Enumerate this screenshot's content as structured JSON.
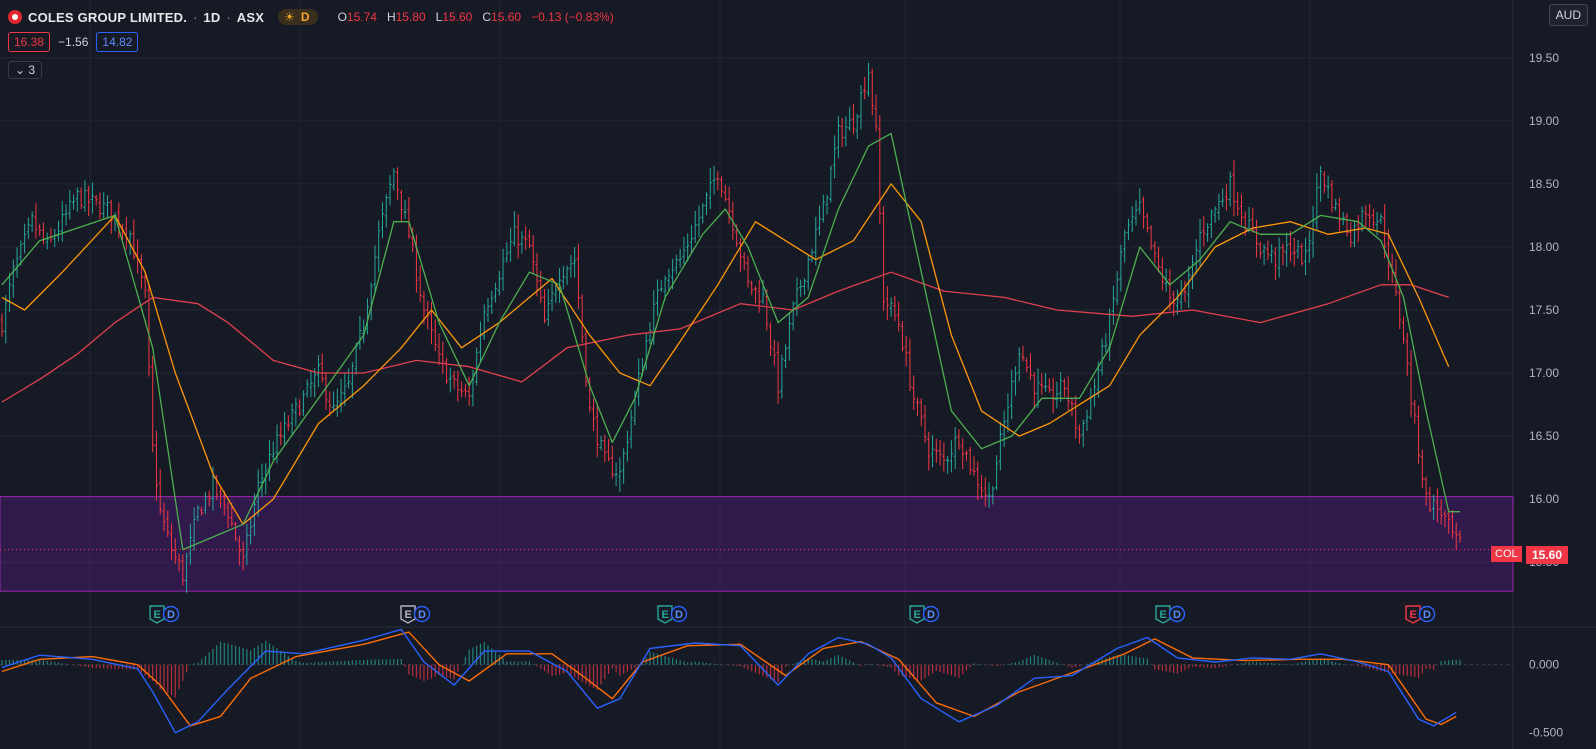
{
  "header": {
    "title": "COLES GROUP LIMITED.",
    "separator": "·",
    "interval": "1D",
    "exchange": "ASX",
    "session_badge": "D",
    "ohlc": {
      "o_label": "O",
      "o_value": "15.74",
      "h_label": "H",
      "h_value": "15.80",
      "l_label": "L",
      "l_value": "15.60",
      "c_label": "C",
      "c_value": "15.60",
      "change": "−0.13 (−0.83%)"
    }
  },
  "quote_bar": {
    "sell": "16.38",
    "spread": "−1.56",
    "buy": "14.82"
  },
  "indicators_toggle": {
    "count": "3",
    "icon": "chevron-down-icon"
  },
  "currency_button": "AUD",
  "price_tag": {
    "symbol": "COL",
    "price": "15.60"
  },
  "colors": {
    "background": "#161a25",
    "up": "#26a69a",
    "down": "#f23645",
    "ma_fast": "#4caf50",
    "ma_mid": "#ff9800",
    "ma_slow": "#e0404f",
    "zone": "#6a1b9a",
    "macd": "#2962ff",
    "signal": "#ff6d00"
  },
  "chart_data": [
    {
      "type": "candlestick",
      "y_axis_ticks": [
        "19.50",
        "19.00",
        "18.50",
        "18.00",
        "17.50",
        "17.00",
        "16.50",
        "16.00",
        "15.50"
      ],
      "ylim": [
        15.2,
        19.8
      ],
      "shaded_zone": [
        15.27,
        16.02
      ],
      "last_price": 15.6,
      "price_keypoints": [
        [
          0,
          17.4
        ],
        [
          3,
          17.8
        ],
        [
          8,
          18.2
        ],
        [
          12,
          18.0
        ],
        [
          20,
          18.4
        ],
        [
          28,
          18.3
        ],
        [
          34,
          18.1
        ],
        [
          38,
          17.6
        ],
        [
          40,
          16.4
        ],
        [
          42,
          15.9
        ],
        [
          45,
          15.6
        ],
        [
          48,
          15.4
        ],
        [
          52,
          15.9
        ],
        [
          56,
          16.1
        ],
        [
          60,
          15.9
        ],
        [
          64,
          15.5
        ],
        [
          68,
          16.1
        ],
        [
          72,
          16.4
        ],
        [
          78,
          16.7
        ],
        [
          84,
          17.0
        ],
        [
          88,
          16.7
        ],
        [
          92,
          16.9
        ],
        [
          96,
          17.4
        ],
        [
          100,
          18.1
        ],
        [
          104,
          18.6
        ],
        [
          108,
          18.1
        ],
        [
          112,
          17.5
        ],
        [
          116,
          17.1
        ],
        [
          120,
          16.9
        ],
        [
          124,
          16.8
        ],
        [
          128,
          17.5
        ],
        [
          132,
          17.8
        ],
        [
          136,
          18.1
        ],
        [
          140,
          18.0
        ],
        [
          144,
          17.4
        ],
        [
          148,
          17.8
        ],
        [
          152,
          17.9
        ],
        [
          156,
          16.7
        ],
        [
          160,
          16.3
        ],
        [
          164,
          16.2
        ],
        [
          168,
          16.8
        ],
        [
          172,
          17.4
        ],
        [
          176,
          17.8
        ],
        [
          180,
          17.9
        ],
        [
          186,
          18.3
        ],
        [
          190,
          18.6
        ],
        [
          194,
          18.2
        ],
        [
          198,
          17.7
        ],
        [
          202,
          17.6
        ],
        [
          206,
          16.9
        ],
        [
          210,
          17.5
        ],
        [
          214,
          17.9
        ],
        [
          218,
          18.3
        ],
        [
          222,
          18.9
        ],
        [
          226,
          19.0
        ],
        [
          230,
          19.4
        ],
        [
          232,
          18.9
        ],
        [
          234,
          17.6
        ],
        [
          238,
          17.4
        ],
        [
          242,
          16.8
        ],
        [
          246,
          16.4
        ],
        [
          250,
          16.3
        ],
        [
          254,
          16.5
        ],
        [
          258,
          16.2
        ],
        [
          262,
          16.0
        ],
        [
          266,
          16.6
        ],
        [
          270,
          17.2
        ],
        [
          274,
          16.9
        ],
        [
          278,
          16.8
        ],
        [
          282,
          16.9
        ],
        [
          286,
          16.5
        ],
        [
          290,
          16.9
        ],
        [
          294,
          17.4
        ],
        [
          298,
          18.1
        ],
        [
          302,
          18.3
        ],
        [
          306,
          17.9
        ],
        [
          310,
          17.6
        ],
        [
          314,
          17.6
        ],
        [
          318,
          18.1
        ],
        [
          322,
          18.3
        ],
        [
          326,
          18.5
        ],
        [
          330,
          18.2
        ],
        [
          334,
          18.0
        ],
        [
          338,
          17.9
        ],
        [
          342,
          18.0
        ],
        [
          346,
          17.9
        ],
        [
          350,
          18.6
        ],
        [
          354,
          18.3
        ],
        [
          358,
          18.1
        ],
        [
          362,
          18.3
        ],
        [
          366,
          18.2
        ],
        [
          370,
          17.6
        ],
        [
          372,
          17.3
        ],
        [
          374,
          16.8
        ],
        [
          376,
          16.4
        ],
        [
          378,
          16.0
        ],
        [
          382,
          15.9
        ],
        [
          386,
          15.65
        ]
      ],
      "ma_fast_keypoints": [
        [
          0,
          17.7
        ],
        [
          10,
          18.05
        ],
        [
          30,
          18.25
        ],
        [
          40,
          17.2
        ],
        [
          48,
          15.6
        ],
        [
          56,
          15.7
        ],
        [
          64,
          15.8
        ],
        [
          72,
          16.3
        ],
        [
          84,
          16.8
        ],
        [
          96,
          17.3
        ],
        [
          104,
          18.2
        ],
        [
          108,
          18.2
        ],
        [
          116,
          17.4
        ],
        [
          124,
          16.9
        ],
        [
          132,
          17.4
        ],
        [
          140,
          17.8
        ],
        [
          148,
          17.7
        ],
        [
          156,
          16.9
        ],
        [
          162,
          16.45
        ],
        [
          168,
          16.8
        ],
        [
          176,
          17.6
        ],
        [
          186,
          18.1
        ],
        [
          192,
          18.3
        ],
        [
          198,
          18.0
        ],
        [
          206,
          17.4
        ],
        [
          214,
          17.6
        ],
        [
          222,
          18.3
        ],
        [
          230,
          18.8
        ],
        [
          236,
          18.9
        ],
        [
          244,
          17.8
        ],
        [
          252,
          16.7
        ],
        [
          260,
          16.4
        ],
        [
          268,
          16.5
        ],
        [
          276,
          16.8
        ],
        [
          286,
          16.8
        ],
        [
          294,
          17.2
        ],
        [
          302,
          18.0
        ],
        [
          310,
          17.7
        ],
        [
          318,
          17.9
        ],
        [
          326,
          18.2
        ],
        [
          334,
          18.1
        ],
        [
          342,
          18.1
        ],
        [
          350,
          18.25
        ],
        [
          360,
          18.2
        ],
        [
          366,
          18.05
        ],
        [
          372,
          17.6
        ],
        [
          378,
          16.7
        ],
        [
          384,
          15.9
        ],
        [
          387,
          15.9
        ]
      ],
      "ma_mid_keypoints": [
        [
          0,
          17.6
        ],
        [
          6,
          17.5
        ],
        [
          16,
          17.8
        ],
        [
          30,
          18.25
        ],
        [
          38,
          17.8
        ],
        [
          46,
          17.0
        ],
        [
          56,
          16.2
        ],
        [
          64,
          15.8
        ],
        [
          72,
          16.0
        ],
        [
          84,
          16.6
        ],
        [
          96,
          16.9
        ],
        [
          106,
          17.2
        ],
        [
          114,
          17.5
        ],
        [
          122,
          17.2
        ],
        [
          132,
          17.4
        ],
        [
          146,
          17.75
        ],
        [
          156,
          17.3
        ],
        [
          164,
          17.0
        ],
        [
          172,
          16.9
        ],
        [
          180,
          17.25
        ],
        [
          190,
          17.7
        ],
        [
          200,
          18.2
        ],
        [
          208,
          18.05
        ],
        [
          216,
          17.9
        ],
        [
          226,
          18.05
        ],
        [
          236,
          18.5
        ],
        [
          244,
          18.2
        ],
        [
          252,
          17.3
        ],
        [
          260,
          16.7
        ],
        [
          270,
          16.5
        ],
        [
          278,
          16.6
        ],
        [
          286,
          16.75
        ],
        [
          294,
          16.9
        ],
        [
          302,
          17.3
        ],
        [
          312,
          17.6
        ],
        [
          322,
          18.0
        ],
        [
          332,
          18.15
        ],
        [
          342,
          18.2
        ],
        [
          352,
          18.1
        ],
        [
          362,
          18.15
        ],
        [
          368,
          18.1
        ],
        [
          376,
          17.6
        ],
        [
          384,
          17.05
        ]
      ],
      "ma_slow_keypoints": [
        [
          0,
          16.77
        ],
        [
          10,
          16.95
        ],
        [
          20,
          17.15
        ],
        [
          30,
          17.4
        ],
        [
          40,
          17.6
        ],
        [
          52,
          17.55
        ],
        [
          60,
          17.4
        ],
        [
          72,
          17.1
        ],
        [
          84,
          17.0
        ],
        [
          96,
          17.0
        ],
        [
          110,
          17.1
        ],
        [
          124,
          17.05
        ],
        [
          138,
          16.93
        ],
        [
          150,
          17.2
        ],
        [
          166,
          17.3
        ],
        [
          180,
          17.35
        ],
        [
          196,
          17.55
        ],
        [
          210,
          17.5
        ],
        [
          222,
          17.65
        ],
        [
          236,
          17.8
        ],
        [
          250,
          17.65
        ],
        [
          266,
          17.6
        ],
        [
          280,
          17.5
        ],
        [
          300,
          17.45
        ],
        [
          316,
          17.5
        ],
        [
          334,
          17.4
        ],
        [
          352,
          17.55
        ],
        [
          366,
          17.7
        ],
        [
          374,
          17.7
        ],
        [
          384,
          17.6
        ]
      ]
    },
    {
      "type": "line",
      "subtype": "macd",
      "y_axis_ticks": [
        "0.000",
        "-0.500"
      ],
      "ylim": [
        -0.62,
        0.27
      ],
      "macd_keypoints": [
        [
          0,
          -0.02
        ],
        [
          10,
          0.07
        ],
        [
          24,
          0.04
        ],
        [
          36,
          -0.03
        ],
        [
          40,
          -0.2
        ],
        [
          46,
          -0.5
        ],
        [
          52,
          -0.42
        ],
        [
          60,
          -0.18
        ],
        [
          70,
          0.1
        ],
        [
          80,
          0.08
        ],
        [
          96,
          0.18
        ],
        [
          106,
          0.26
        ],
        [
          112,
          0.02
        ],
        [
          120,
          -0.15
        ],
        [
          128,
          0.1
        ],
        [
          140,
          0.1
        ],
        [
          150,
          -0.05
        ],
        [
          158,
          -0.32
        ],
        [
          164,
          -0.25
        ],
        [
          172,
          0.12
        ],
        [
          184,
          0.16
        ],
        [
          196,
          0.14
        ],
        [
          206,
          -0.15
        ],
        [
          214,
          0.08
        ],
        [
          222,
          0.2
        ],
        [
          230,
          0.15
        ],
        [
          236,
          0.05
        ],
        [
          244,
          -0.25
        ],
        [
          254,
          -0.42
        ],
        [
          264,
          -0.3
        ],
        [
          274,
          -0.1
        ],
        [
          284,
          -0.08
        ],
        [
          296,
          0.12
        ],
        [
          304,
          0.2
        ],
        [
          312,
          0.05
        ],
        [
          322,
          0.02
        ],
        [
          332,
          0.05
        ],
        [
          342,
          0.04
        ],
        [
          350,
          0.08
        ],
        [
          360,
          0.02
        ],
        [
          368,
          -0.05
        ],
        [
          376,
          -0.4
        ],
        [
          380,
          -0.45
        ],
        [
          386,
          -0.35
        ]
      ],
      "signal_keypoints": [
        [
          0,
          -0.05
        ],
        [
          10,
          0.04
        ],
        [
          24,
          0.06
        ],
        [
          36,
          0.0
        ],
        [
          42,
          -0.15
        ],
        [
          50,
          -0.45
        ],
        [
          58,
          -0.38
        ],
        [
          66,
          -0.1
        ],
        [
          78,
          0.06
        ],
        [
          96,
          0.15
        ],
        [
          108,
          0.24
        ],
        [
          116,
          0.0
        ],
        [
          124,
          -0.12
        ],
        [
          134,
          0.08
        ],
        [
          146,
          0.08
        ],
        [
          154,
          -0.08
        ],
        [
          162,
          -0.25
        ],
        [
          170,
          0.02
        ],
        [
          182,
          0.14
        ],
        [
          196,
          0.15
        ],
        [
          208,
          -0.08
        ],
        [
          218,
          0.12
        ],
        [
          228,
          0.17
        ],
        [
          238,
          0.04
        ],
        [
          248,
          -0.28
        ],
        [
          258,
          -0.38
        ],
        [
          270,
          -0.2
        ],
        [
          284,
          -0.06
        ],
        [
          298,
          0.08
        ],
        [
          306,
          0.19
        ],
        [
          316,
          0.05
        ],
        [
          330,
          0.03
        ],
        [
          344,
          0.04
        ],
        [
          356,
          0.04
        ],
        [
          368,
          0.0
        ],
        [
          378,
          -0.4
        ],
        [
          382,
          -0.44
        ],
        [
          386,
          -0.38
        ]
      ]
    }
  ],
  "earnings_markers": [
    {
      "letter": "E",
      "style": "green",
      "d": "D"
    },
    {
      "letter": "E",
      "style": "gray",
      "d": "D"
    },
    {
      "letter": "E",
      "style": "green",
      "d": "D"
    },
    {
      "letter": "E",
      "style": "green",
      "d": "D"
    },
    {
      "letter": "E",
      "style": "green",
      "d": "D"
    },
    {
      "letter": "E",
      "style": "red",
      "d": "D"
    }
  ]
}
